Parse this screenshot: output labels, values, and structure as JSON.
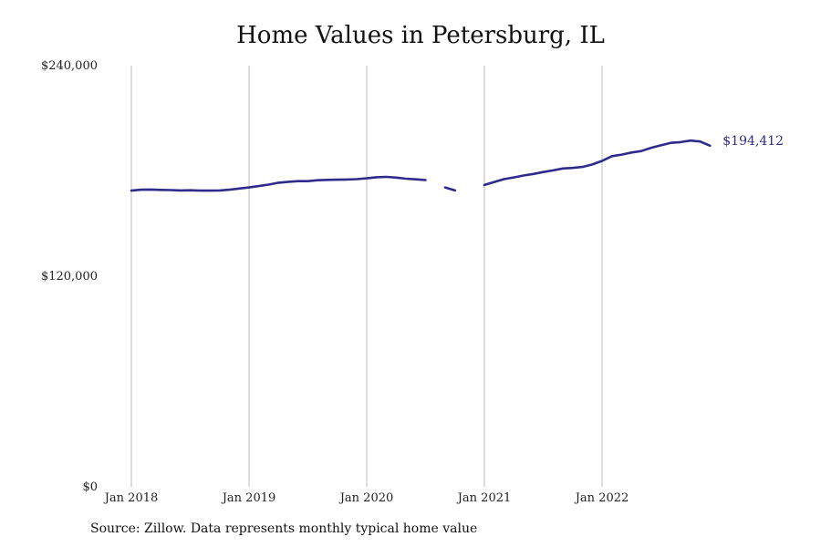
{
  "title": "Home Values in Petersburg, IL",
  "source_note": "Source: Zillow. Data represents monthly typical home value",
  "colors": {
    "line": "#2e2b8c",
    "grid": "#bbbbbb",
    "text": "#111111"
  },
  "chart_data": {
    "type": "line",
    "title": "Home Values in Petersburg, IL",
    "xlabel": "",
    "ylabel": "",
    "ylim": [
      0,
      240000
    ],
    "y_ticks": [
      {
        "value": 0,
        "label": "$0"
      },
      {
        "value": 120000,
        "label": "$120,000"
      },
      {
        "value": 240000,
        "label": "$240,000"
      }
    ],
    "x_ticks": [
      {
        "date": "2018-01",
        "label": "Jan 2018"
      },
      {
        "date": "2019-01",
        "label": "Jan 2019"
      },
      {
        "date": "2020-01",
        "label": "Jan 2020"
      },
      {
        "date": "2021-01",
        "label": "Jan 2021"
      },
      {
        "date": "2022-01",
        "label": "Jan 2022"
      }
    ],
    "grid": "vertical",
    "end_label": "$194,412",
    "series": [
      {
        "segments": [
          [
            {
              "x": "2018-01",
              "y": 168800
            },
            {
              "x": "2018-02",
              "y": 169300
            },
            {
              "x": "2018-03",
              "y": 169400
            },
            {
              "x": "2018-04",
              "y": 169200
            },
            {
              "x": "2018-05",
              "y": 169100
            },
            {
              "x": "2018-06",
              "y": 168900
            },
            {
              "x": "2018-07",
              "y": 169000
            },
            {
              "x": "2018-08",
              "y": 168800
            },
            {
              "x": "2018-09",
              "y": 168800
            },
            {
              "x": "2018-10",
              "y": 168900
            },
            {
              "x": "2018-11",
              "y": 169300
            },
            {
              "x": "2018-12",
              "y": 170000
            },
            {
              "x": "2019-01",
              "y": 170600
            },
            {
              "x": "2019-02",
              "y": 171400
            },
            {
              "x": "2019-03",
              "y": 172200
            },
            {
              "x": "2019-04",
              "y": 173300
            },
            {
              "x": "2019-05",
              "y": 173800
            },
            {
              "x": "2019-06",
              "y": 174200
            },
            {
              "x": "2019-07",
              "y": 174200
            },
            {
              "x": "2019-08",
              "y": 174700
            },
            {
              "x": "2019-09",
              "y": 174900
            },
            {
              "x": "2019-10",
              "y": 175000
            },
            {
              "x": "2019-11",
              "y": 175100
            },
            {
              "x": "2019-12",
              "y": 175300
            },
            {
              "x": "2020-01",
              "y": 175800
            },
            {
              "x": "2020-02",
              "y": 176400
            },
            {
              "x": "2020-03",
              "y": 176600
            },
            {
              "x": "2020-04",
              "y": 176200
            },
            {
              "x": "2020-05",
              "y": 175600
            },
            {
              "x": "2020-06",
              "y": 175200
            },
            {
              "x": "2020-07",
              "y": 174800
            }
          ],
          [
            {
              "x": "2020-09",
              "y": 170600
            },
            {
              "x": "2020-10",
              "y": 168900
            }
          ],
          [
            {
              "x": "2021-01",
              "y": 172000
            },
            {
              "x": "2021-02",
              "y": 173700
            },
            {
              "x": "2021-03",
              "y": 175300
            },
            {
              "x": "2021-04",
              "y": 176300
            },
            {
              "x": "2021-05",
              "y": 177400
            },
            {
              "x": "2021-06",
              "y": 178300
            },
            {
              "x": "2021-07",
              "y": 179400
            },
            {
              "x": "2021-08",
              "y": 180300
            },
            {
              "x": "2021-09",
              "y": 181400
            },
            {
              "x": "2021-10",
              "y": 181700
            },
            {
              "x": "2021-11",
              "y": 182300
            },
            {
              "x": "2021-12",
              "y": 183700
            },
            {
              "x": "2022-01",
              "y": 185700
            },
            {
              "x": "2022-02",
              "y": 188400
            },
            {
              "x": "2022-03",
              "y": 189300
            },
            {
              "x": "2022-04",
              "y": 190500
            },
            {
              "x": "2022-05",
              "y": 191300
            },
            {
              "x": "2022-06",
              "y": 193200
            },
            {
              "x": "2022-07",
              "y": 194600
            },
            {
              "x": "2022-08",
              "y": 196000
            },
            {
              "x": "2022-09",
              "y": 196400
            },
            {
              "x": "2022-10",
              "y": 197300
            },
            {
              "x": "2022-11",
              "y": 196800
            },
            {
              "x": "2022-12",
              "y": 194412
            }
          ]
        ]
      }
    ]
  }
}
